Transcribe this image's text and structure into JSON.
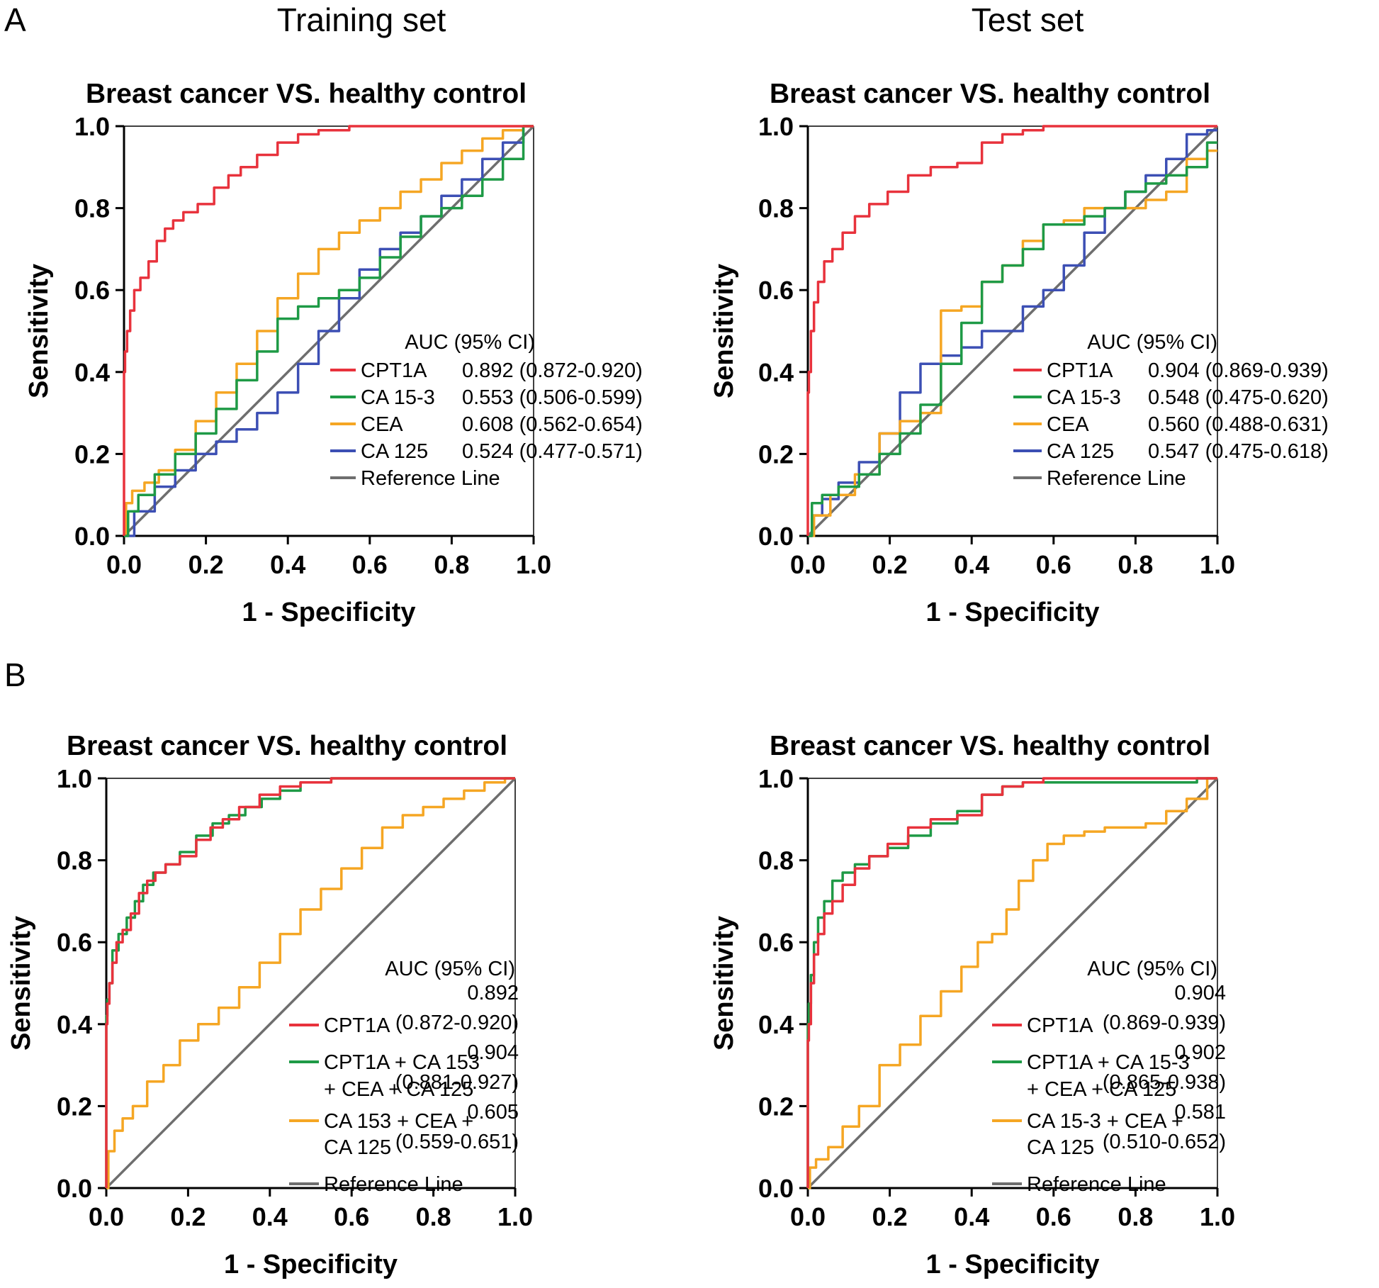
{
  "figure": {
    "panel_labels": [
      "A",
      "B"
    ],
    "set_titles": [
      "Training set",
      "Test set"
    ]
  },
  "chart_data": [
    {
      "type": "line",
      "panel": "A",
      "set": "Training set",
      "title": "Breast cancer VS. healthy control",
      "xlabel": "1 - Specificity",
      "ylabel": "Sensitivity",
      "xlim": [
        0,
        1
      ],
      "ylim": [
        0,
        1
      ],
      "xticks": [
        "0.0",
        "0.2",
        "0.4",
        "0.6",
        "0.8",
        "1.0"
      ],
      "yticks": [
        "0.0",
        "0.2",
        "0.4",
        "0.6",
        "0.8",
        "1.0"
      ],
      "legend_header": "AUC (95% CI)",
      "series": [
        {
          "name": "CPT1A",
          "auc": "0.892 (0.872-0.920)",
          "color": "#e8323c",
          "x": [
            0,
            0,
            0.005,
            0.01,
            0.02,
            0.03,
            0.05,
            0.07,
            0.09,
            0.11,
            0.13,
            0.16,
            0.2,
            0.24,
            0.27,
            0.3,
            0.35,
            0.4,
            0.45,
            0.5,
            0.6,
            0.7,
            0.8,
            0.9,
            1
          ],
          "y": [
            0,
            0.4,
            0.45,
            0.5,
            0.55,
            0.6,
            0.63,
            0.67,
            0.72,
            0.75,
            0.77,
            0.79,
            0.81,
            0.85,
            0.88,
            0.9,
            0.93,
            0.96,
            0.98,
            0.99,
            1,
            1,
            1,
            1,
            1
          ]
        },
        {
          "name": "CA 15-3",
          "auc": "0.553 (0.506-0.599)",
          "color": "#1e9a46",
          "x": [
            0,
            0.02,
            0.05,
            0.1,
            0.15,
            0.2,
            0.25,
            0.3,
            0.35,
            0.4,
            0.45,
            0.5,
            0.55,
            0.6,
            0.65,
            0.7,
            0.75,
            0.8,
            0.85,
            0.9,
            0.95,
            1
          ],
          "y": [
            0,
            0.06,
            0.1,
            0.15,
            0.2,
            0.25,
            0.31,
            0.38,
            0.45,
            0.53,
            0.56,
            0.58,
            0.6,
            0.63,
            0.68,
            0.73,
            0.78,
            0.8,
            0.83,
            0.87,
            0.92,
            1
          ]
        },
        {
          "name": "CEA",
          "auc": "0.608 (0.562-0.654)",
          "color": "#f5a623",
          "x": [
            0,
            0.01,
            0.03,
            0.07,
            0.1,
            0.15,
            0.2,
            0.25,
            0.3,
            0.35,
            0.4,
            0.45,
            0.5,
            0.55,
            0.6,
            0.65,
            0.7,
            0.75,
            0.8,
            0.85,
            0.9,
            0.95,
            1
          ],
          "y": [
            0,
            0.08,
            0.11,
            0.13,
            0.16,
            0.21,
            0.28,
            0.35,
            0.42,
            0.5,
            0.58,
            0.64,
            0.7,
            0.74,
            0.77,
            0.8,
            0.84,
            0.87,
            0.91,
            0.94,
            0.97,
            0.99,
            1
          ]
        },
        {
          "name": "CA 125",
          "auc": "0.524 (0.477-0.571)",
          "color": "#3c4fb4",
          "x": [
            0,
            0.05,
            0.1,
            0.15,
            0.2,
            0.25,
            0.3,
            0.35,
            0.4,
            0.45,
            0.5,
            0.55,
            0.6,
            0.65,
            0.7,
            0.75,
            0.8,
            0.85,
            0.9,
            0.95,
            1
          ],
          "y": [
            0,
            0.06,
            0.12,
            0.16,
            0.2,
            0.23,
            0.26,
            0.3,
            0.35,
            0.42,
            0.5,
            0.58,
            0.65,
            0.7,
            0.74,
            0.78,
            0.83,
            0.87,
            0.92,
            0.96,
            1
          ]
        },
        {
          "name": "Reference Line",
          "auc": "",
          "color": "#6e6e6e",
          "x": [
            0,
            1
          ],
          "y": [
            0,
            1
          ]
        }
      ]
    },
    {
      "type": "line",
      "panel": "A",
      "set": "Test set",
      "title": "Breast cancer VS. healthy control",
      "xlabel": "1 - Specificity",
      "ylabel": "Sensitivity",
      "xlim": [
        0,
        1
      ],
      "ylim": [
        0,
        1
      ],
      "xticks": [
        "0.0",
        "0.2",
        "0.4",
        "0.6",
        "0.8",
        "1.0"
      ],
      "yticks": [
        "0.0",
        "0.2",
        "0.4",
        "0.6",
        "0.8",
        "1.0"
      ],
      "legend_header": "AUC (95% CI)",
      "series": [
        {
          "name": "CPT1A",
          "auc": "0.904 (0.869-0.939)",
          "color": "#e8323c",
          "x": [
            0,
            0,
            0.005,
            0.01,
            0.02,
            0.03,
            0.05,
            0.07,
            0.1,
            0.13,
            0.17,
            0.22,
            0.27,
            0.33,
            0.4,
            0.45,
            0.5,
            0.55,
            0.6,
            0.7,
            0.8,
            0.9,
            1
          ],
          "y": [
            0,
            0.35,
            0.4,
            0.5,
            0.57,
            0.62,
            0.67,
            0.7,
            0.74,
            0.78,
            0.81,
            0.84,
            0.88,
            0.9,
            0.91,
            0.96,
            0.98,
            0.99,
            1,
            1,
            1,
            1,
            1
          ]
        },
        {
          "name": "CA 15-3",
          "auc": "0.548 (0.475-0.620)",
          "color": "#1e9a46",
          "x": [
            0,
            0.02,
            0.05,
            0.1,
            0.15,
            0.2,
            0.25,
            0.3,
            0.35,
            0.4,
            0.45,
            0.5,
            0.55,
            0.6,
            0.65,
            0.7,
            0.75,
            0.8,
            0.85,
            0.9,
            0.95,
            1
          ],
          "y": [
            0,
            0.08,
            0.1,
            0.12,
            0.15,
            0.2,
            0.25,
            0.32,
            0.42,
            0.52,
            0.62,
            0.66,
            0.7,
            0.76,
            0.76,
            0.78,
            0.8,
            0.84,
            0.86,
            0.88,
            0.9,
            0.96
          ]
        },
        {
          "name": "CEA",
          "auc": "0.560 (0.488-0.631)",
          "color": "#f5a623",
          "x": [
            0,
            0.03,
            0.08,
            0.15,
            0.2,
            0.25,
            0.3,
            0.35,
            0.4,
            0.45,
            0.5,
            0.55,
            0.6,
            0.65,
            0.7,
            0.75,
            0.8,
            0.85,
            0.9,
            0.95,
            1
          ],
          "y": [
            0,
            0.05,
            0.1,
            0.15,
            0.25,
            0.28,
            0.3,
            0.55,
            0.56,
            0.62,
            0.66,
            0.72,
            0.76,
            0.77,
            0.8,
            0.8,
            0.8,
            0.82,
            0.84,
            0.92,
            0.94
          ]
        },
        {
          "name": "CA 125",
          "auc": "0.547 (0.475-0.618)",
          "color": "#3c4fb4",
          "x": [
            0,
            0.02,
            0.05,
            0.1,
            0.15,
            0.2,
            0.25,
            0.3,
            0.35,
            0.4,
            0.45,
            0.5,
            0.55,
            0.6,
            0.65,
            0.7,
            0.75,
            0.8,
            0.85,
            0.9,
            0.95,
            1
          ],
          "y": [
            0,
            0.05,
            0.09,
            0.13,
            0.18,
            0.25,
            0.35,
            0.42,
            0.44,
            0.46,
            0.5,
            0.5,
            0.56,
            0.6,
            0.66,
            0.74,
            0.8,
            0.84,
            0.88,
            0.92,
            0.98,
            0.99
          ]
        },
        {
          "name": "Reference Line",
          "auc": "",
          "color": "#6e6e6e",
          "x": [
            0,
            1
          ],
          "y": [
            0,
            1
          ]
        }
      ]
    },
    {
      "type": "line",
      "panel": "B",
      "set": "Training set",
      "title": "Breast cancer VS. healthy control",
      "xlabel": "1 - Specificity",
      "ylabel": "Sensitivity",
      "xlim": [
        0,
        1
      ],
      "ylim": [
        0,
        1
      ],
      "xticks": [
        "0.0",
        "0.2",
        "0.4",
        "0.6",
        "0.8",
        "1.0"
      ],
      "yticks": [
        "0.0",
        "0.2",
        "0.4",
        "0.6",
        "0.8",
        "1.0"
      ],
      "legend_header": "AUC (95% CI)",
      "series": [
        {
          "name": "CPT1A",
          "auc": "0.892 (0.872-0.920)",
          "color": "#e8323c",
          "x": [
            0,
            0,
            0.005,
            0.01,
            0.02,
            0.03,
            0.05,
            0.07,
            0.09,
            0.11,
            0.13,
            0.16,
            0.2,
            0.24,
            0.27,
            0.3,
            0.35,
            0.4,
            0.45,
            0.5,
            0.6,
            0.7,
            0.8,
            0.9,
            1
          ],
          "y": [
            0,
            0.4,
            0.45,
            0.5,
            0.55,
            0.6,
            0.63,
            0.67,
            0.72,
            0.75,
            0.77,
            0.79,
            0.81,
            0.85,
            0.88,
            0.9,
            0.93,
            0.96,
            0.98,
            0.99,
            1,
            1,
            1,
            1,
            1
          ]
        },
        {
          "name": "CPT1A + CA 153 + CEA + CA 125",
          "auc": "0.904 (0.881-0.927)",
          "color": "#1e9a46",
          "x": [
            0,
            0,
            0.005,
            0.01,
            0.02,
            0.04,
            0.06,
            0.08,
            0.1,
            0.13,
            0.16,
            0.2,
            0.24,
            0.28,
            0.32,
            0.36,
            0.4,
            0.45,
            0.5,
            0.6,
            0.7,
            0.8,
            0.9,
            1
          ],
          "y": [
            0,
            0.42,
            0.46,
            0.5,
            0.58,
            0.62,
            0.66,
            0.7,
            0.74,
            0.77,
            0.79,
            0.82,
            0.86,
            0.89,
            0.91,
            0.93,
            0.95,
            0.97,
            0.99,
            1,
            1,
            1,
            1,
            1
          ]
        },
        {
          "name": "CA 153 + CEA + CA 125",
          "auc": "0.605 (0.559-0.651)",
          "color": "#f5a623",
          "x": [
            0,
            0.01,
            0.03,
            0.05,
            0.08,
            0.12,
            0.16,
            0.2,
            0.25,
            0.3,
            0.35,
            0.4,
            0.45,
            0.5,
            0.55,
            0.6,
            0.65,
            0.7,
            0.75,
            0.8,
            0.85,
            0.9,
            0.95,
            1
          ],
          "y": [
            0,
            0.09,
            0.14,
            0.17,
            0.2,
            0.26,
            0.3,
            0.36,
            0.4,
            0.44,
            0.49,
            0.55,
            0.62,
            0.68,
            0.73,
            0.78,
            0.83,
            0.88,
            0.91,
            0.93,
            0.95,
            0.97,
            0.99,
            1
          ]
        },
        {
          "name": "Reference Line",
          "auc": "",
          "color": "#6e6e6e",
          "x": [
            0,
            1
          ],
          "y": [
            0,
            1
          ]
        }
      ]
    },
    {
      "type": "line",
      "panel": "B",
      "set": "Test set",
      "title": "Breast cancer VS. healthy control",
      "xlabel": "1 - Specificity",
      "ylabel": "Sensitivity",
      "xlim": [
        0,
        1
      ],
      "ylim": [
        0,
        1
      ],
      "xticks": [
        "0.0",
        "0.2",
        "0.4",
        "0.6",
        "0.8",
        "1.0"
      ],
      "yticks": [
        "0.0",
        "0.2",
        "0.4",
        "0.6",
        "0.8",
        "1.0"
      ],
      "legend_header": "AUC (95% CI)",
      "series": [
        {
          "name": "CPT1A",
          "auc": "0.904 (0.869-0.939)",
          "color": "#e8323c",
          "x": [
            0,
            0,
            0.005,
            0.01,
            0.02,
            0.03,
            0.05,
            0.07,
            0.1,
            0.13,
            0.17,
            0.22,
            0.27,
            0.33,
            0.4,
            0.45,
            0.5,
            0.55,
            0.6,
            0.7,
            0.8,
            0.9,
            1
          ],
          "y": [
            0,
            0.36,
            0.4,
            0.5,
            0.57,
            0.62,
            0.67,
            0.7,
            0.74,
            0.78,
            0.81,
            0.84,
            0.88,
            0.9,
            0.91,
            0.96,
            0.98,
            0.99,
            1,
            1,
            1,
            1,
            1
          ]
        },
        {
          "name": "CPT1A + CA 15-3 + CEA + CA 125",
          "auc": "0.902 (0.865-0.938)",
          "color": "#1e9a46",
          "x": [
            0,
            0,
            0.005,
            0.01,
            0.02,
            0.03,
            0.05,
            0.07,
            0.1,
            0.13,
            0.17,
            0.22,
            0.27,
            0.33,
            0.4,
            0.45,
            0.5,
            0.55,
            0.6,
            0.7,
            0.8,
            0.9,
            1
          ],
          "y": [
            0,
            0.4,
            0.45,
            0.52,
            0.6,
            0.66,
            0.7,
            0.75,
            0.77,
            0.79,
            0.81,
            0.83,
            0.86,
            0.89,
            0.92,
            0.96,
            0.98,
            0.99,
            0.99,
            0.99,
            0.99,
            0.99,
            1
          ]
        },
        {
          "name": "CA 15-3 + CEA + CA 125",
          "auc": "0.581 (0.510-0.652)",
          "color": "#f5a623",
          "x": [
            0,
            0.01,
            0.03,
            0.07,
            0.1,
            0.15,
            0.2,
            0.25,
            0.3,
            0.35,
            0.4,
            0.43,
            0.47,
            0.5,
            0.53,
            0.57,
            0.6,
            0.65,
            0.7,
            0.75,
            0.8,
            0.85,
            0.9,
            0.95,
            1
          ],
          "y": [
            0,
            0.05,
            0.07,
            0.1,
            0.15,
            0.2,
            0.3,
            0.35,
            0.42,
            0.48,
            0.54,
            0.6,
            0.62,
            0.68,
            0.75,
            0.8,
            0.84,
            0.86,
            0.87,
            0.88,
            0.88,
            0.89,
            0.92,
            0.95,
            1
          ]
        },
        {
          "name": "Reference Line",
          "auc": "",
          "color": "#6e6e6e",
          "x": [
            0,
            1
          ],
          "y": [
            0,
            1
          ]
        }
      ]
    }
  ]
}
